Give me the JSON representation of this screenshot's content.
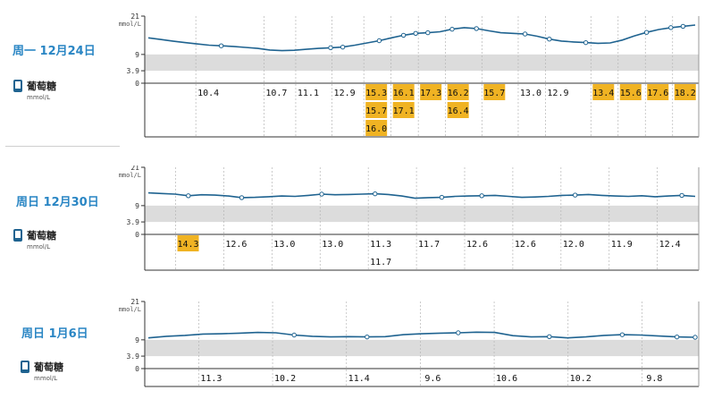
{
  "colors": {
    "line": "#1f6390",
    "band": "#dcdcdc",
    "high": "#f0b323",
    "day_label": "#2a86c4",
    "grid": "#b5b5b5"
  },
  "metric": {
    "name": "葡萄糖",
    "unit": "mmol/L",
    "icon": "phone-device-icon"
  },
  "days": [
    {
      "label": "周一 12月24日",
      "chart_data": {
        "type": "line",
        "ylabel": "mmol/L",
        "yticks": [
          "21",
          "9",
          "3.9",
          "0"
        ],
        "ylim": [
          0,
          21
        ],
        "target_band": [
          3.9,
          9
        ],
        "values": [
          14.2,
          13.7,
          13.2,
          12.7,
          12.3,
          11.9,
          11.7,
          11.5,
          11.2,
          10.9,
          10.4,
          10.2,
          10.3,
          10.6,
          10.9,
          11.1,
          11.3,
          11.9,
          12.6,
          13.3,
          14.2,
          15.0,
          15.6,
          15.8,
          16.1,
          16.9,
          17.4,
          17.1,
          16.4,
          15.8,
          15.6,
          15.4,
          14.7,
          13.8,
          13.2,
          12.9,
          12.7,
          12.5,
          12.6,
          13.5,
          14.8,
          15.9,
          16.8,
          17.4,
          17.8,
          18.2
        ],
        "markers": [
          6,
          15,
          16,
          19,
          21,
          22,
          23,
          25,
          27,
          31,
          33,
          36,
          41,
          43,
          44
        ],
        "readings": [
          {
            "rows": [
              "10.4"
            ],
            "high": [
              false
            ]
          },
          {
            "rows": [
              "10.7"
            ],
            "high": [
              false
            ]
          },
          {
            "rows": [
              "11.1"
            ],
            "high": [
              false
            ]
          },
          {
            "rows": [
              "12.9"
            ],
            "high": [
              false
            ]
          },
          {
            "rows": [
              "15.3",
              "15.7",
              "16.0"
            ],
            "high": [
              true,
              true,
              true
            ]
          },
          {
            "rows": [
              "16.1",
              "17.1"
            ],
            "high": [
              true,
              true
            ]
          },
          {
            "rows": [
              "17.3"
            ],
            "high": [
              true
            ]
          },
          {
            "rows": [
              "16.2",
              "16.4"
            ],
            "high": [
              true,
              true
            ]
          },
          {
            "rows": [
              "15.7"
            ],
            "high": [
              true
            ]
          },
          {
            "rows": [
              "13.0"
            ],
            "high": [
              false
            ]
          },
          {
            "rows": [
              "12.9"
            ],
            "high": [
              false
            ]
          },
          {
            "rows": [
              "13.4"
            ],
            "high": [
              true
            ]
          },
          {
            "rows": [
              "15.6"
            ],
            "high": [
              true
            ]
          },
          {
            "rows": [
              "17.6"
            ],
            "high": [
              true
            ]
          },
          {
            "rows": [
              "18.2"
            ],
            "high": [
              true
            ]
          }
        ]
      }
    },
    {
      "label": "周日 12月30日",
      "chart_data": {
        "type": "line",
        "ylabel": "mmol/L",
        "yticks": [
          "21",
          "9",
          "3.9",
          "0"
        ],
        "ylim": [
          0,
          21
        ],
        "target_band": [
          3.9,
          9
        ],
        "values": [
          13.0,
          12.8,
          12.6,
          12.1,
          12.4,
          12.3,
          12.0,
          11.5,
          11.6,
          11.8,
          12.0,
          11.9,
          12.2,
          12.6,
          12.4,
          12.5,
          12.6,
          12.7,
          12.5,
          12.0,
          11.3,
          11.5,
          11.6,
          11.9,
          12.0,
          12.1,
          12.2,
          11.9,
          11.6,
          11.7,
          11.9,
          12.2,
          12.3,
          12.5,
          12.2,
          12.0,
          11.9,
          12.1,
          11.8,
          12.0,
          12.2,
          11.9
        ],
        "markers": [
          3,
          7,
          13,
          17,
          22,
          25,
          32,
          40,
          43,
          47,
          50
        ],
        "readings": [
          {
            "rows": [
              "14.3"
            ],
            "high": [
              true
            ]
          },
          {
            "rows": [
              "12.6"
            ],
            "high": [
              false
            ]
          },
          {
            "rows": [
              "13.0"
            ],
            "high": [
              false
            ]
          },
          {
            "rows": [
              "13.0"
            ],
            "high": [
              false
            ]
          },
          {
            "rows": [
              "11.3",
              "11.7"
            ],
            "high": [
              false,
              false
            ]
          },
          {
            "rows": [
              "11.7"
            ],
            "high": [
              false
            ]
          },
          {
            "rows": [
              "12.6"
            ],
            "high": [
              false
            ]
          },
          {
            "rows": [
              "12.6"
            ],
            "high": [
              false
            ]
          },
          {
            "rows": [
              "12.0"
            ],
            "high": [
              false
            ]
          },
          {
            "rows": [
              "11.9"
            ],
            "high": [
              false
            ]
          },
          {
            "rows": [
              "12.4"
            ],
            "high": [
              false
            ]
          }
        ]
      }
    },
    {
      "label": "周日 1月6日",
      "chart_data": {
        "type": "line",
        "ylabel": "mmol/L",
        "yticks": [
          "21",
          "9",
          "3.9",
          "0"
        ],
        "ylim": [
          0,
          21
        ],
        "target_band": [
          3.9,
          9
        ],
        "values": [
          9.6,
          10.1,
          10.4,
          10.8,
          10.9,
          11.1,
          11.3,
          11.2,
          10.5,
          10.1,
          9.9,
          10.0,
          9.9,
          10.0,
          10.6,
          10.9,
          11.1,
          11.2,
          11.4,
          11.3,
          10.3,
          9.9,
          10.0,
          9.6,
          9.9,
          10.4,
          10.6,
          10.5,
          10.2,
          9.9,
          9.8
        ],
        "markers": [
          8,
          12,
          17,
          22,
          26,
          29,
          30
        ],
        "readings": [
          {
            "rows": [
              "11.3"
            ],
            "high": [
              false
            ]
          },
          {
            "rows": [
              "10.2"
            ],
            "high": [
              false
            ]
          },
          {
            "rows": [
              "11.4"
            ],
            "high": [
              false
            ]
          },
          {
            "rows": [
              "9.6"
            ],
            "high": [
              false
            ]
          },
          {
            "rows": [
              "10.6"
            ],
            "high": [
              false
            ]
          },
          {
            "rows": [
              "10.2"
            ],
            "high": [
              false
            ]
          },
          {
            "rows": [
              "9.8"
            ],
            "high": [
              false
            ]
          }
        ]
      }
    }
  ]
}
